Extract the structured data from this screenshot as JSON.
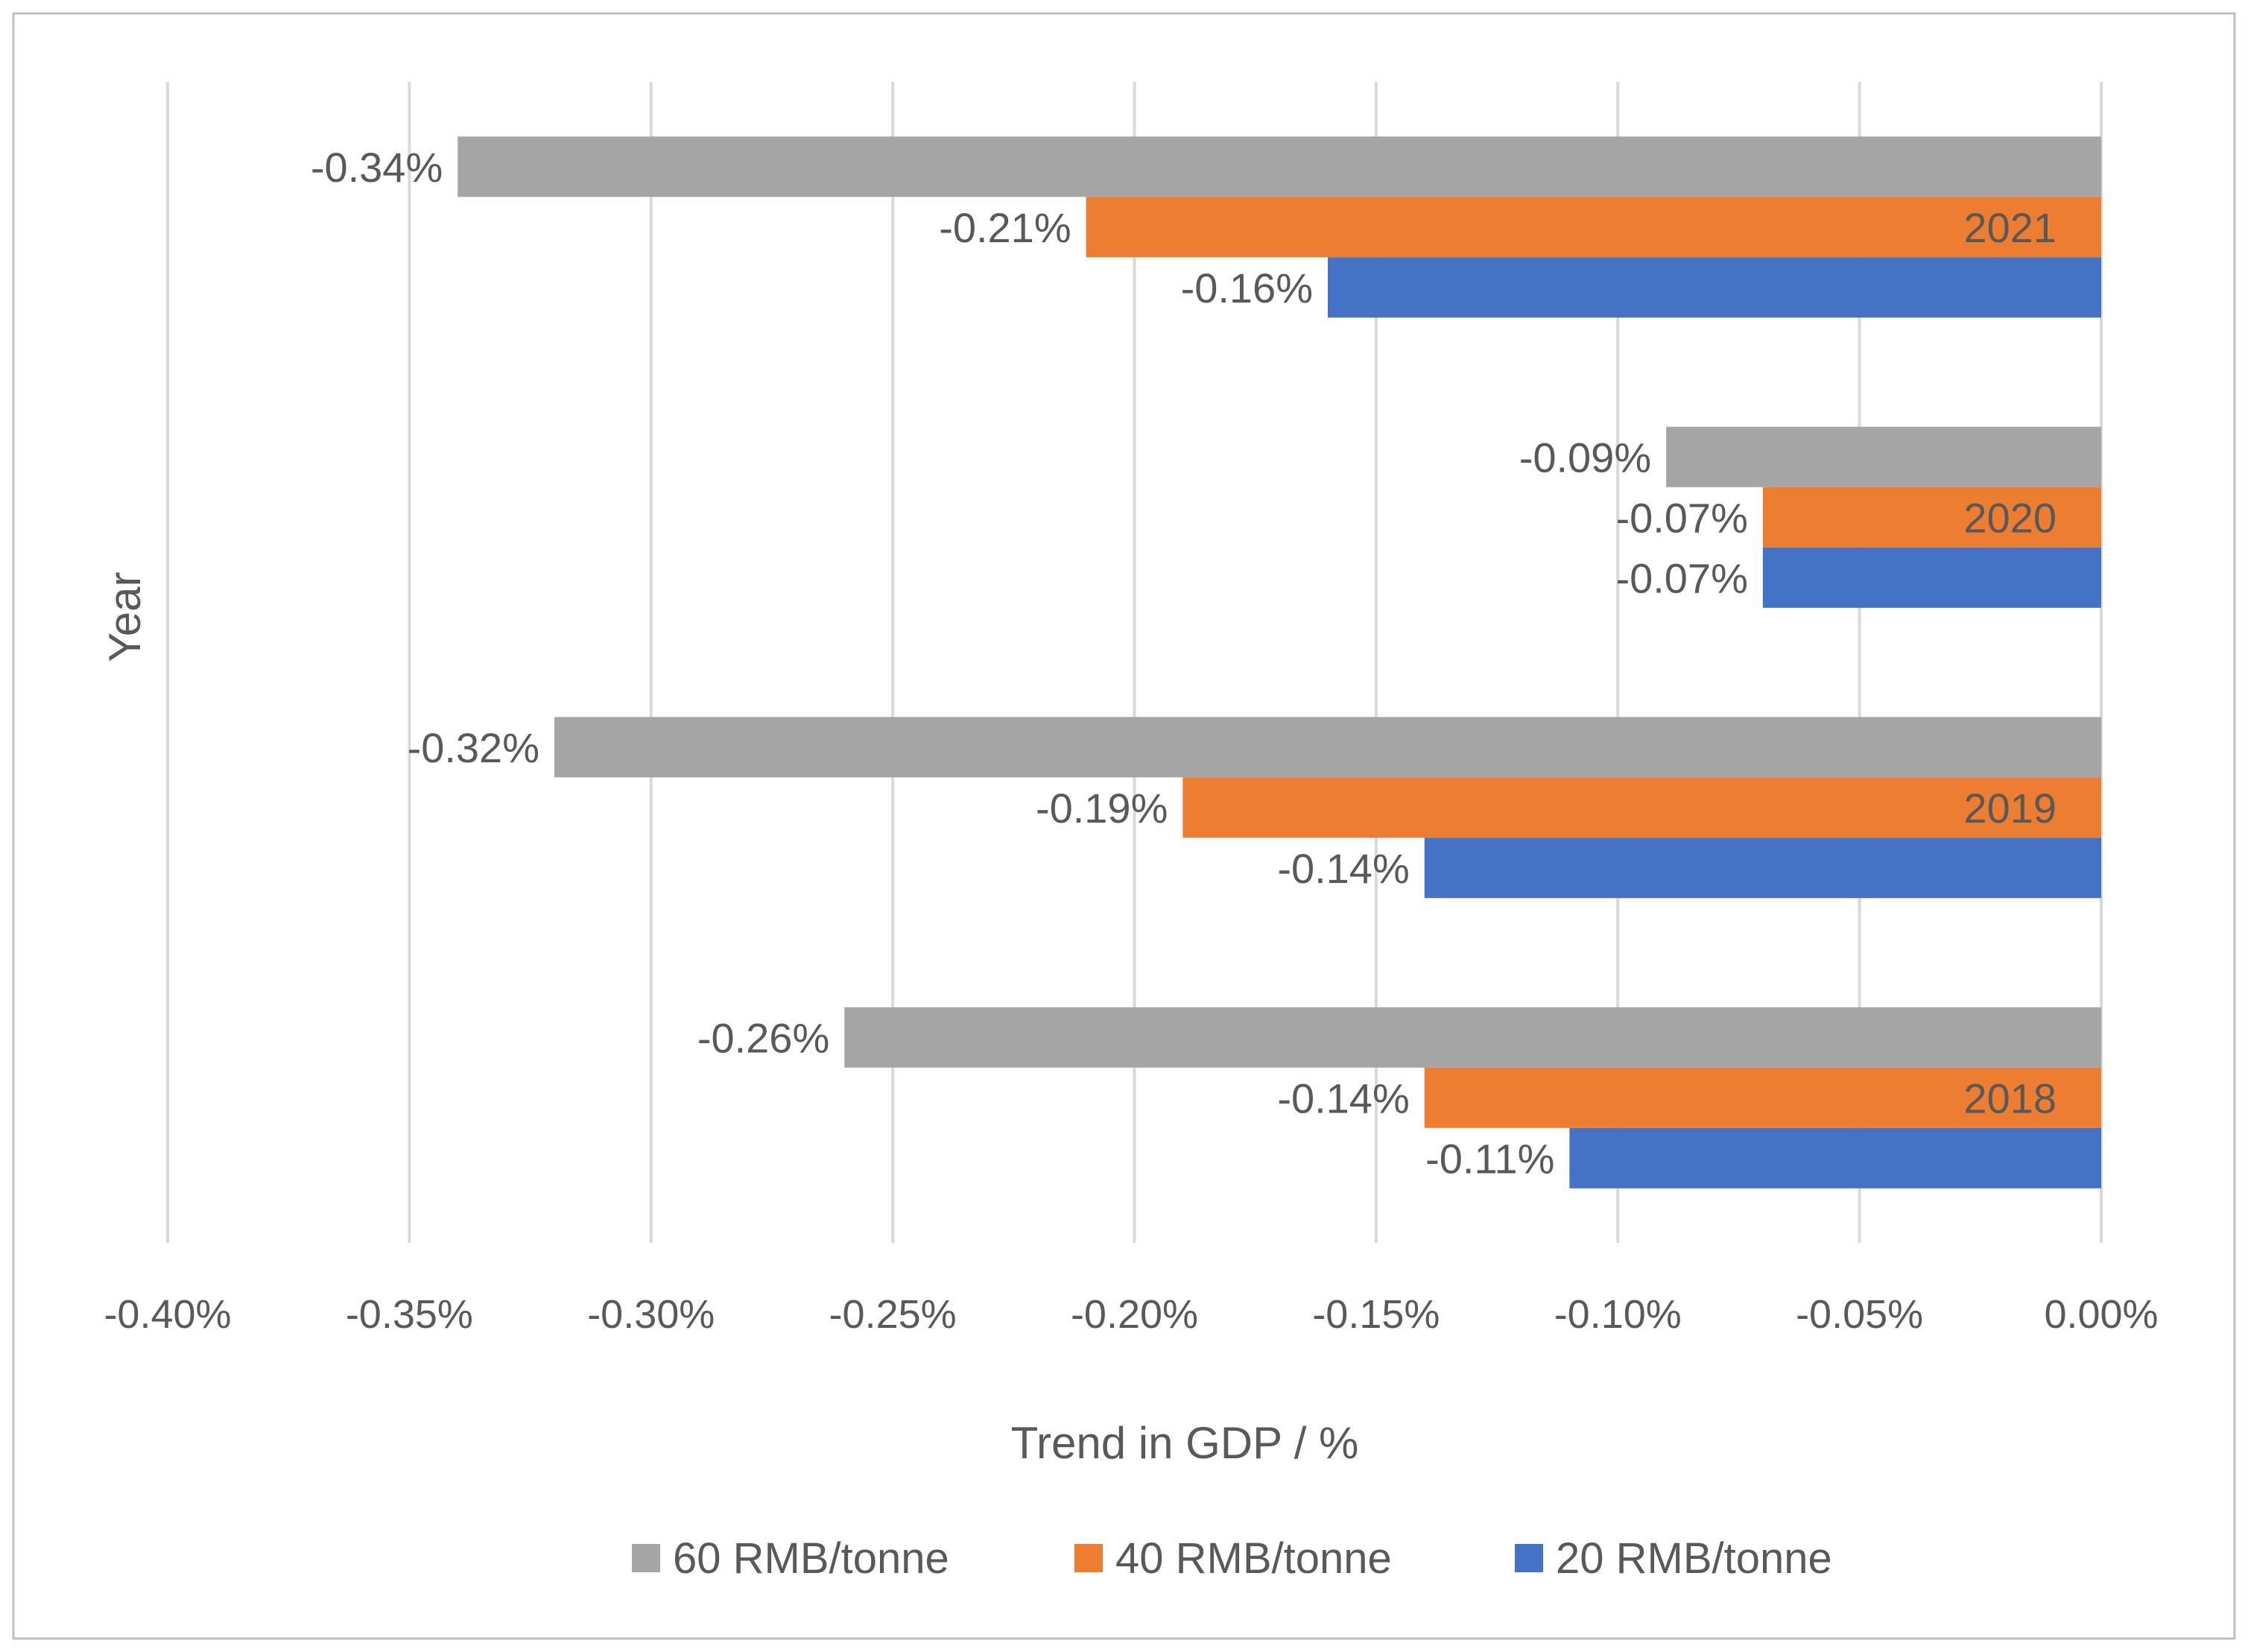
{
  "chart_data": {
    "type": "bar",
    "orientation": "horizontal",
    "title": "",
    "xlabel": "Trend in GDP / %",
    "ylabel": "Year",
    "xlim": [
      -0.4,
      0.0
    ],
    "x_ticks": [
      -0.4,
      -0.35,
      -0.3,
      -0.25,
      -0.2,
      -0.15,
      -0.1,
      -0.05,
      0.0
    ],
    "x_tick_labels": [
      "-0.40%",
      "-0.35%",
      "-0.30%",
      "-0.25%",
      "-0.20%",
      "-0.15%",
      "-0.10%",
      "-0.05%",
      "0.00%"
    ],
    "grid": "vertical",
    "legend_position": "bottom",
    "categories": [
      "2021",
      "2020",
      "2019",
      "2018"
    ],
    "series": [
      {
        "name": "60 RMB/tonne",
        "color": "#a5a5a5",
        "values": [
          -0.34,
          -0.09,
          -0.32,
          -0.26
        ],
        "labels": [
          "-0.34%",
          "-0.09%",
          "-0.32%",
          "-0.26%"
        ]
      },
      {
        "name": "40 RMB/tonne",
        "color": "#ed7d31",
        "values": [
          -0.21,
          -0.07,
          -0.19,
          -0.14
        ],
        "labels": [
          "-0.21%",
          "-0.07%",
          "-0.19%",
          "-0.14%"
        ]
      },
      {
        "name": "20 RMB/tonne",
        "color": "#4472c4",
        "values": [
          -0.16,
          -0.07,
          -0.14,
          -0.11
        ],
        "labels": [
          "-0.16%",
          "-0.07%",
          "-0.14%",
          "-0.11%"
        ]
      }
    ],
    "colors": {
      "gridline": "#d9d9d9",
      "text": "#595959",
      "border": "#bfbfbf"
    }
  }
}
